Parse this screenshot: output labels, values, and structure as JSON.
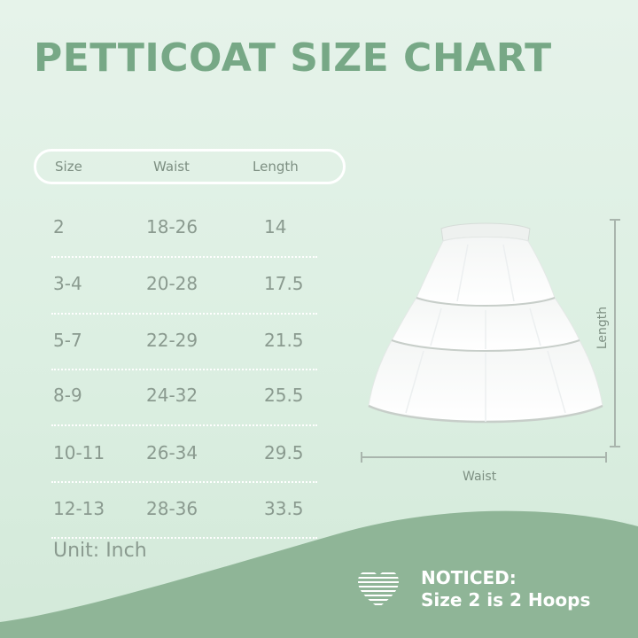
{
  "title": "PETTICOAT SIZE CHART",
  "table": {
    "headers": {
      "size": "Size",
      "waist": "Waist",
      "length": "Length"
    },
    "rows": [
      {
        "size": "2",
        "waist": "18-26",
        "length": "14"
      },
      {
        "size": "3-4",
        "waist": "20-28",
        "length": "17.5"
      },
      {
        "size": "5-7",
        "waist": "22-29",
        "length": "21.5"
      },
      {
        "size": "8-9",
        "waist": "24-32",
        "length": "25.5"
      },
      {
        "size": "10-11",
        "waist": "26-34",
        "length": "29.5"
      },
      {
        "size": "12-13",
        "waist": "28-36",
        "length": "33.5"
      }
    ],
    "unit": "Unit:  Inch"
  },
  "diagram": {
    "waist_label": "Waist",
    "length_label": "Length",
    "icon": "petticoat-hoop-skirt"
  },
  "notice": {
    "title": "NOTICED:",
    "text": "Size 2 is 2 Hoops",
    "icon": "heart-icon"
  },
  "colors": {
    "title": "#77a886",
    "text": "#8a9a8f",
    "band": "#8fb597",
    "background": "#e0f1e5"
  }
}
